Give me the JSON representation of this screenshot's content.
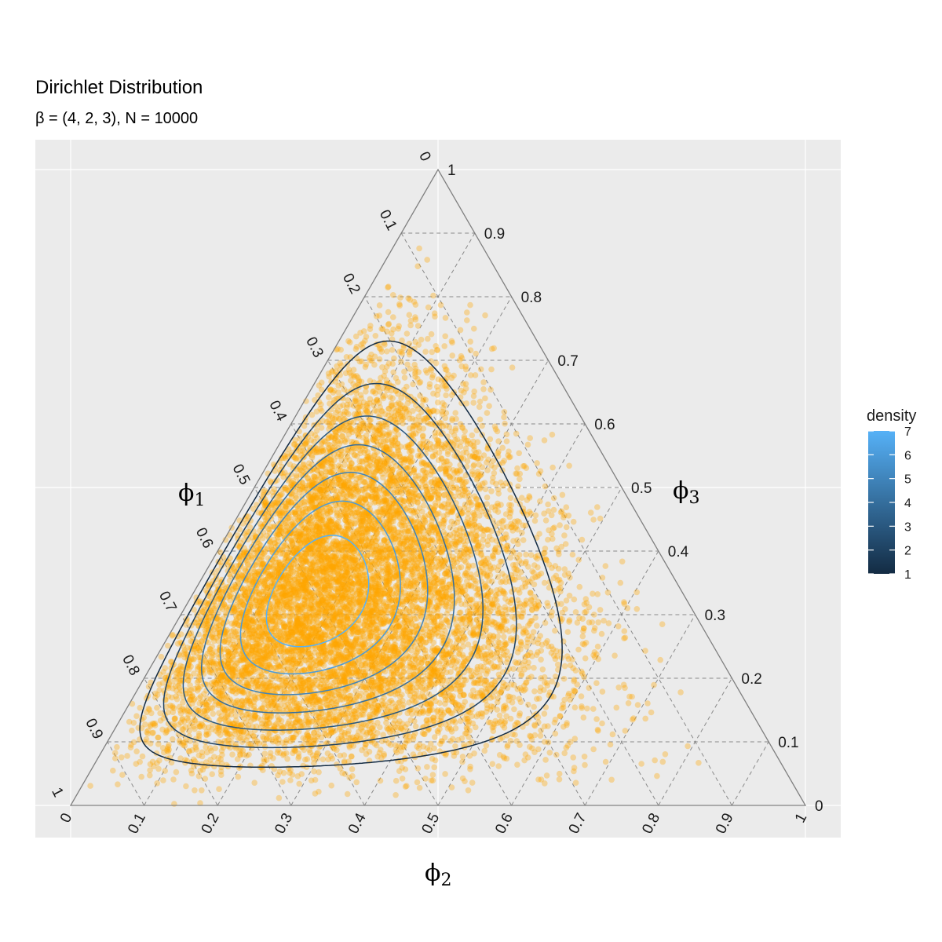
{
  "chart_data": {
    "type": "scatter",
    "title": "Dirichlet Distribution",
    "subtitle": "β = (4, 2, 3), N = 10000",
    "alpha": [
      4,
      2,
      3
    ],
    "n_samples": 10000,
    "axes": {
      "phi1": {
        "label": "ϕ",
        "sub": "1",
        "position": "left"
      },
      "phi2": {
        "label": "ϕ",
        "sub": "2",
        "position": "bottom"
      },
      "phi3": {
        "label": "ϕ",
        "sub": "3",
        "position": "right"
      }
    },
    "ticks": {
      "left": [
        "0",
        "0.1",
        "0.2",
        "0.3",
        "0.4",
        "0.5",
        "0.6",
        "0.7",
        "0.8",
        "0.9",
        "1"
      ],
      "bottom": [
        "0",
        "0.1",
        "0.2",
        "0.3",
        "0.4",
        "0.5",
        "0.6",
        "0.7",
        "0.8",
        "0.9",
        "1"
      ],
      "right": [
        "1",
        "0.9",
        "0.8",
        "0.7",
        "0.6",
        "0.5",
        "0.4",
        "0.3",
        "0.2",
        "0.1",
        "0"
      ]
    },
    "contour_levels": [
      1,
      2,
      3,
      4,
      5,
      6,
      7
    ],
    "legend": {
      "title": "density",
      "min": 1,
      "max": 7,
      "ticks": [
        "1",
        "2",
        "3",
        "4",
        "5",
        "6",
        "7"
      ],
      "color_low": "#132B43",
      "color_high": "#56B1F7",
      "placement": "right"
    },
    "point_color": "#FFA500",
    "panel_background": "#EBEBEB",
    "grid": true
  }
}
